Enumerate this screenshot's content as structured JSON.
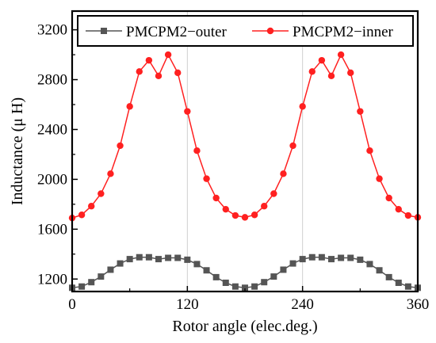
{
  "chart_data": {
    "type": "line",
    "title": "",
    "xlabel": "Rotor angle (elec.deg.)",
    "ylabel": "Inductance (μ H)",
    "xlim": [
      0,
      360
    ],
    "ylim": [
      1100,
      3350
    ],
    "x_ticks": [
      0,
      120,
      240,
      360
    ],
    "y_ticks": [
      1200,
      1600,
      2000,
      2400,
      2800,
      3200
    ],
    "grid": "vertical",
    "legend_position": "top",
    "x": [
      0,
      10,
      20,
      30,
      40,
      50,
      60,
      70,
      80,
      90,
      100,
      110,
      120,
      130,
      140,
      150,
      160,
      170,
      180,
      190,
      200,
      210,
      220,
      230,
      240,
      250,
      260,
      270,
      280,
      290,
      300,
      310,
      320,
      330,
      340,
      350,
      360
    ],
    "series": [
      {
        "name": "PMCPM2−outer",
        "color": "#555555",
        "marker": "square",
        "values": [
          1130,
          1140,
          1175,
          1220,
          1275,
          1325,
          1360,
          1375,
          1375,
          1360,
          1370,
          1370,
          1355,
          1320,
          1270,
          1215,
          1170,
          1140,
          1130,
          1140,
          1175,
          1220,
          1275,
          1325,
          1360,
          1375,
          1375,
          1360,
          1370,
          1370,
          1355,
          1320,
          1270,
          1215,
          1170,
          1140,
          1130
        ]
      },
      {
        "name": "PMCPM2−inner",
        "color": "#ff2020",
        "marker": "circle",
        "values": [
          1690,
          1715,
          1785,
          1885,
          2045,
          2270,
          2585,
          2865,
          2955,
          2830,
          3000,
          2855,
          2545,
          2230,
          2005,
          1850,
          1760,
          1710,
          1695,
          1715,
          1785,
          1885,
          2045,
          2270,
          2585,
          2865,
          2955,
          2830,
          3000,
          2855,
          2545,
          2230,
          2005,
          1850,
          1760,
          1710,
          1695
        ]
      }
    ]
  }
}
